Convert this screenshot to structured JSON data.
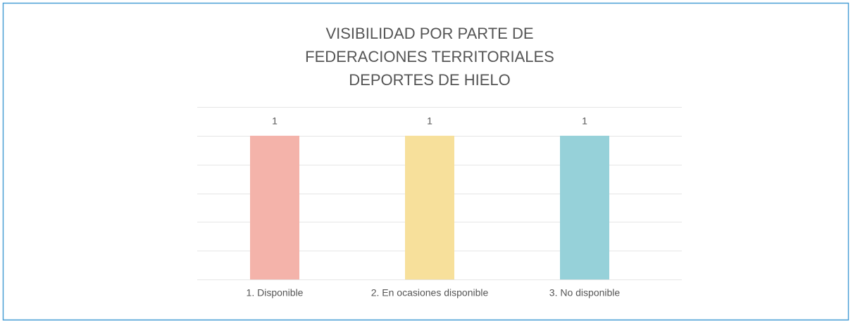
{
  "chart_data": {
    "type": "bar",
    "title": [
      "VISIBILIDAD POR PARTE DE",
      "FEDERACIONES TERRITORIALES",
      "DEPORTES DE HIELO"
    ],
    "categories": [
      "1. Disponible",
      "2. En ocasiones disponible",
      "3. No disponible"
    ],
    "values": [
      1,
      1,
      1
    ],
    "colors": [
      "#f4b3aa",
      "#f7e09b",
      "#96d1d9"
    ],
    "ylim": [
      0,
      1.2
    ],
    "yticks": [
      0,
      0.2,
      0.4,
      0.6,
      0.8,
      1,
      1.2
    ],
    "grid": true
  }
}
